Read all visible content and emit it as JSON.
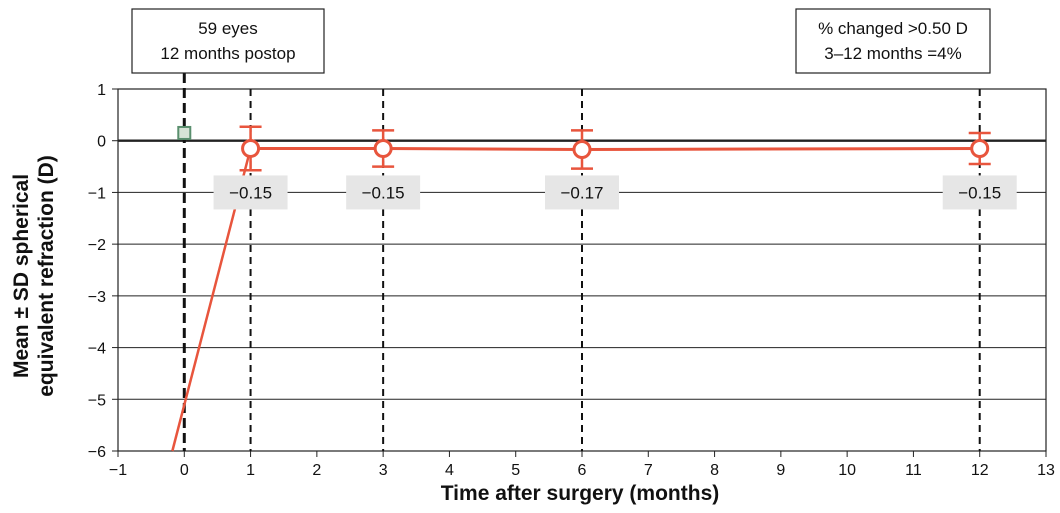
{
  "chart_data": {
    "type": "line",
    "xlabel": "Time after surgery (months)",
    "ylabel_lines": [
      "Mean ± SD spherical",
      "equivalent refraction (D)"
    ],
    "xlim": [
      -1,
      13
    ],
    "ylim": [
      -6,
      1
    ],
    "x_ticks": [
      "−1",
      "0",
      "1",
      "2",
      "3",
      "4",
      "5",
      "6",
      "7",
      "8",
      "9",
      "10",
      "11",
      "12",
      "13"
    ],
    "y_ticks": [
      "1",
      "0",
      "−1",
      "−2",
      "−3",
      "−4",
      "−5",
      "−6"
    ],
    "grid": "horizontal",
    "vertical_reference_lines": [
      0,
      1,
      3,
      6,
      12
    ],
    "colors": {
      "series": "#e8553d",
      "preop_marker": "#5a8f6e",
      "label_bg": "#e6e6e6"
    },
    "preop": {
      "x": 0,
      "y": 0.15
    },
    "series": [
      {
        "x": [
          1,
          3,
          6,
          12
        ],
        "y": [
          -0.15,
          -0.15,
          -0.17,
          -0.15
        ],
        "sd": [
          0.42,
          0.35,
          0.37,
          0.3
        ]
      }
    ],
    "preop_line": {
      "x": [
        -0.18,
        1
      ],
      "y": [
        -6,
        -0.15
      ]
    },
    "data_labels": [
      "−0.15",
      "−0.15",
      "−0.17",
      "−0.15"
    ],
    "annotations": [
      {
        "lines": [
          "59 eyes",
          "12 months postop"
        ]
      },
      {
        "lines": [
          "% changed >0.50 D",
          "3–12 months =4%"
        ]
      }
    ]
  }
}
